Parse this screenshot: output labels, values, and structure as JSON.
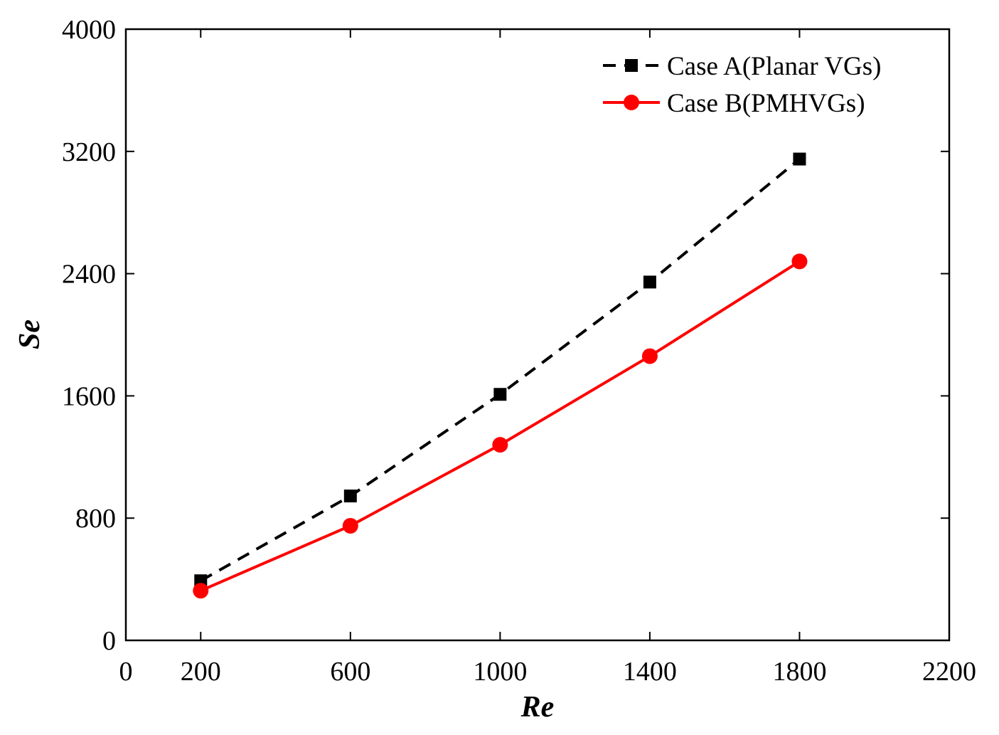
{
  "chart_data": {
    "type": "line",
    "xlabel": "Re",
    "ylabel": "Se",
    "xlim": [
      0,
      2200
    ],
    "ylim": [
      0,
      4000
    ],
    "xticks": [
      0,
      200,
      600,
      1000,
      1400,
      1800,
      2200
    ],
    "yticks": [
      0,
      800,
      1600,
      2400,
      3200,
      4000
    ],
    "grid": false,
    "legend_position": "top-right",
    "x": [
      200,
      600,
      1000,
      1400,
      1800
    ],
    "series": [
      {
        "name": "Case A(Planar VGs)",
        "values": [
          390,
          945,
          1610,
          2345,
          3150
        ],
        "color": "#000000",
        "line": "dashed",
        "marker": "square"
      },
      {
        "name": "Case B(PMHVGs)",
        "values": [
          325,
          750,
          1280,
          1860,
          2480
        ],
        "color": "#ff0000",
        "line": "solid",
        "marker": "circle"
      }
    ]
  }
}
